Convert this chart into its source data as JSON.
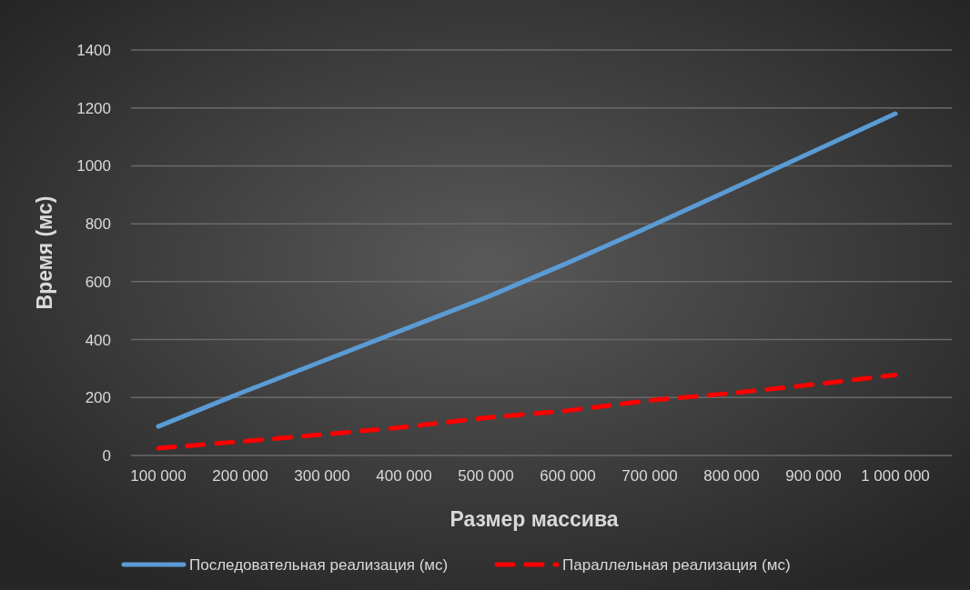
{
  "chart_data": {
    "type": "line",
    "xlabel": "Размер массива",
    "ylabel": "Время (мс)",
    "categories": [
      "100 000",
      "200 000",
      "300 000",
      "400 000",
      "500 000",
      "600 000",
      "700 000",
      "800 000",
      "900 000",
      "1 000 000"
    ],
    "series": [
      {
        "name": "Последовательная реализация (мс)",
        "color": "#5b9bd5",
        "values": [
          100,
          215,
          325,
          435,
          545,
          665,
          790,
          920,
          1050,
          1180
        ]
      },
      {
        "name": "Параллельная реализация (мс)",
        "color": "#ff0000",
        "line_style": "dashed",
        "values": [
          25,
          48,
          72,
          98,
          130,
          155,
          190,
          215,
          245,
          278
        ]
      }
    ],
    "ylim": [
      0,
      1400
    ],
    "yticks": [
      0,
      200,
      400,
      600,
      800,
      1000,
      1200,
      1400
    ],
    "grid": "y",
    "legend": "bottom",
    "marker": "none"
  }
}
